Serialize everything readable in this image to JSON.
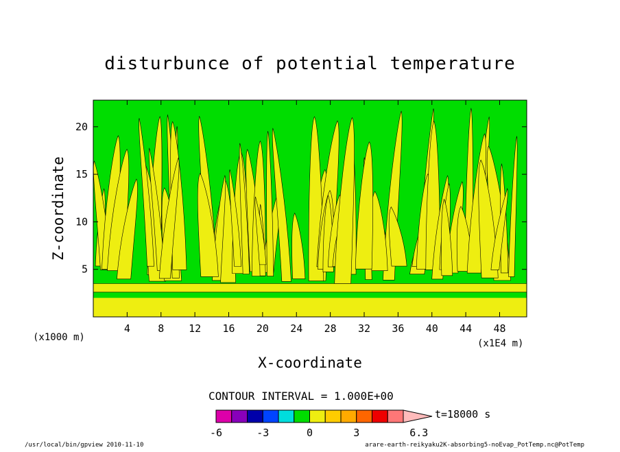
{
  "chart_data": {
    "type": "heatmap",
    "title": "disturbunce of potential temperature",
    "xlabel": "X-coordinate",
    "ylabel": "Z-coordinate",
    "y_unit": "(x1000 m)",
    "x_unit": "(x1E4 m)",
    "xlim": [
      0,
      51.2
    ],
    "ylim": [
      0,
      22.8
    ],
    "x_ticks": [
      4,
      8,
      12,
      16,
      20,
      24,
      28,
      32,
      36,
      40,
      44,
      48
    ],
    "y_ticks": [
      5,
      10,
      15,
      20
    ],
    "contour_interval": "CONTOUR INTERVAL = 1.000E+00",
    "time_label": "t=18000 s",
    "colorbar": {
      "levels": [
        -6,
        -5,
        -4,
        -3,
        -2,
        -1,
        0,
        1,
        2,
        3,
        4,
        5,
        6,
        6.3
      ],
      "colors": [
        "#dd00aa",
        "#8800bb",
        "#0000aa",
        "#0044ff",
        "#00dddd",
        "#00dd00",
        "#eeee11",
        "#ffcc00",
        "#ffaa00",
        "#ff6600",
        "#ee0000",
        "#ff7777",
        "#ffbbbb"
      ],
      "tick_labels": [
        "-6",
        "-3",
        "0",
        "3",
        "6.3"
      ],
      "tick_values": [
        -6,
        -3,
        0,
        3,
        6.3
      ]
    },
    "bands": {
      "background_level": "0 to 1",
      "positive_level": "1 to 2",
      "surface_layer_z": [
        0,
        2.0
      ]
    },
    "colors": {
      "background": "#00dd00",
      "positive": "#eeee11",
      "surface": "#eeee11"
    }
  },
  "footer": {
    "left": "/usr/local/bin/gpview  2010-11-10",
    "right": "arare-earth-reikyaku2K-absorbing5-noEvap_PotTemp.nc@PotTemp"
  }
}
